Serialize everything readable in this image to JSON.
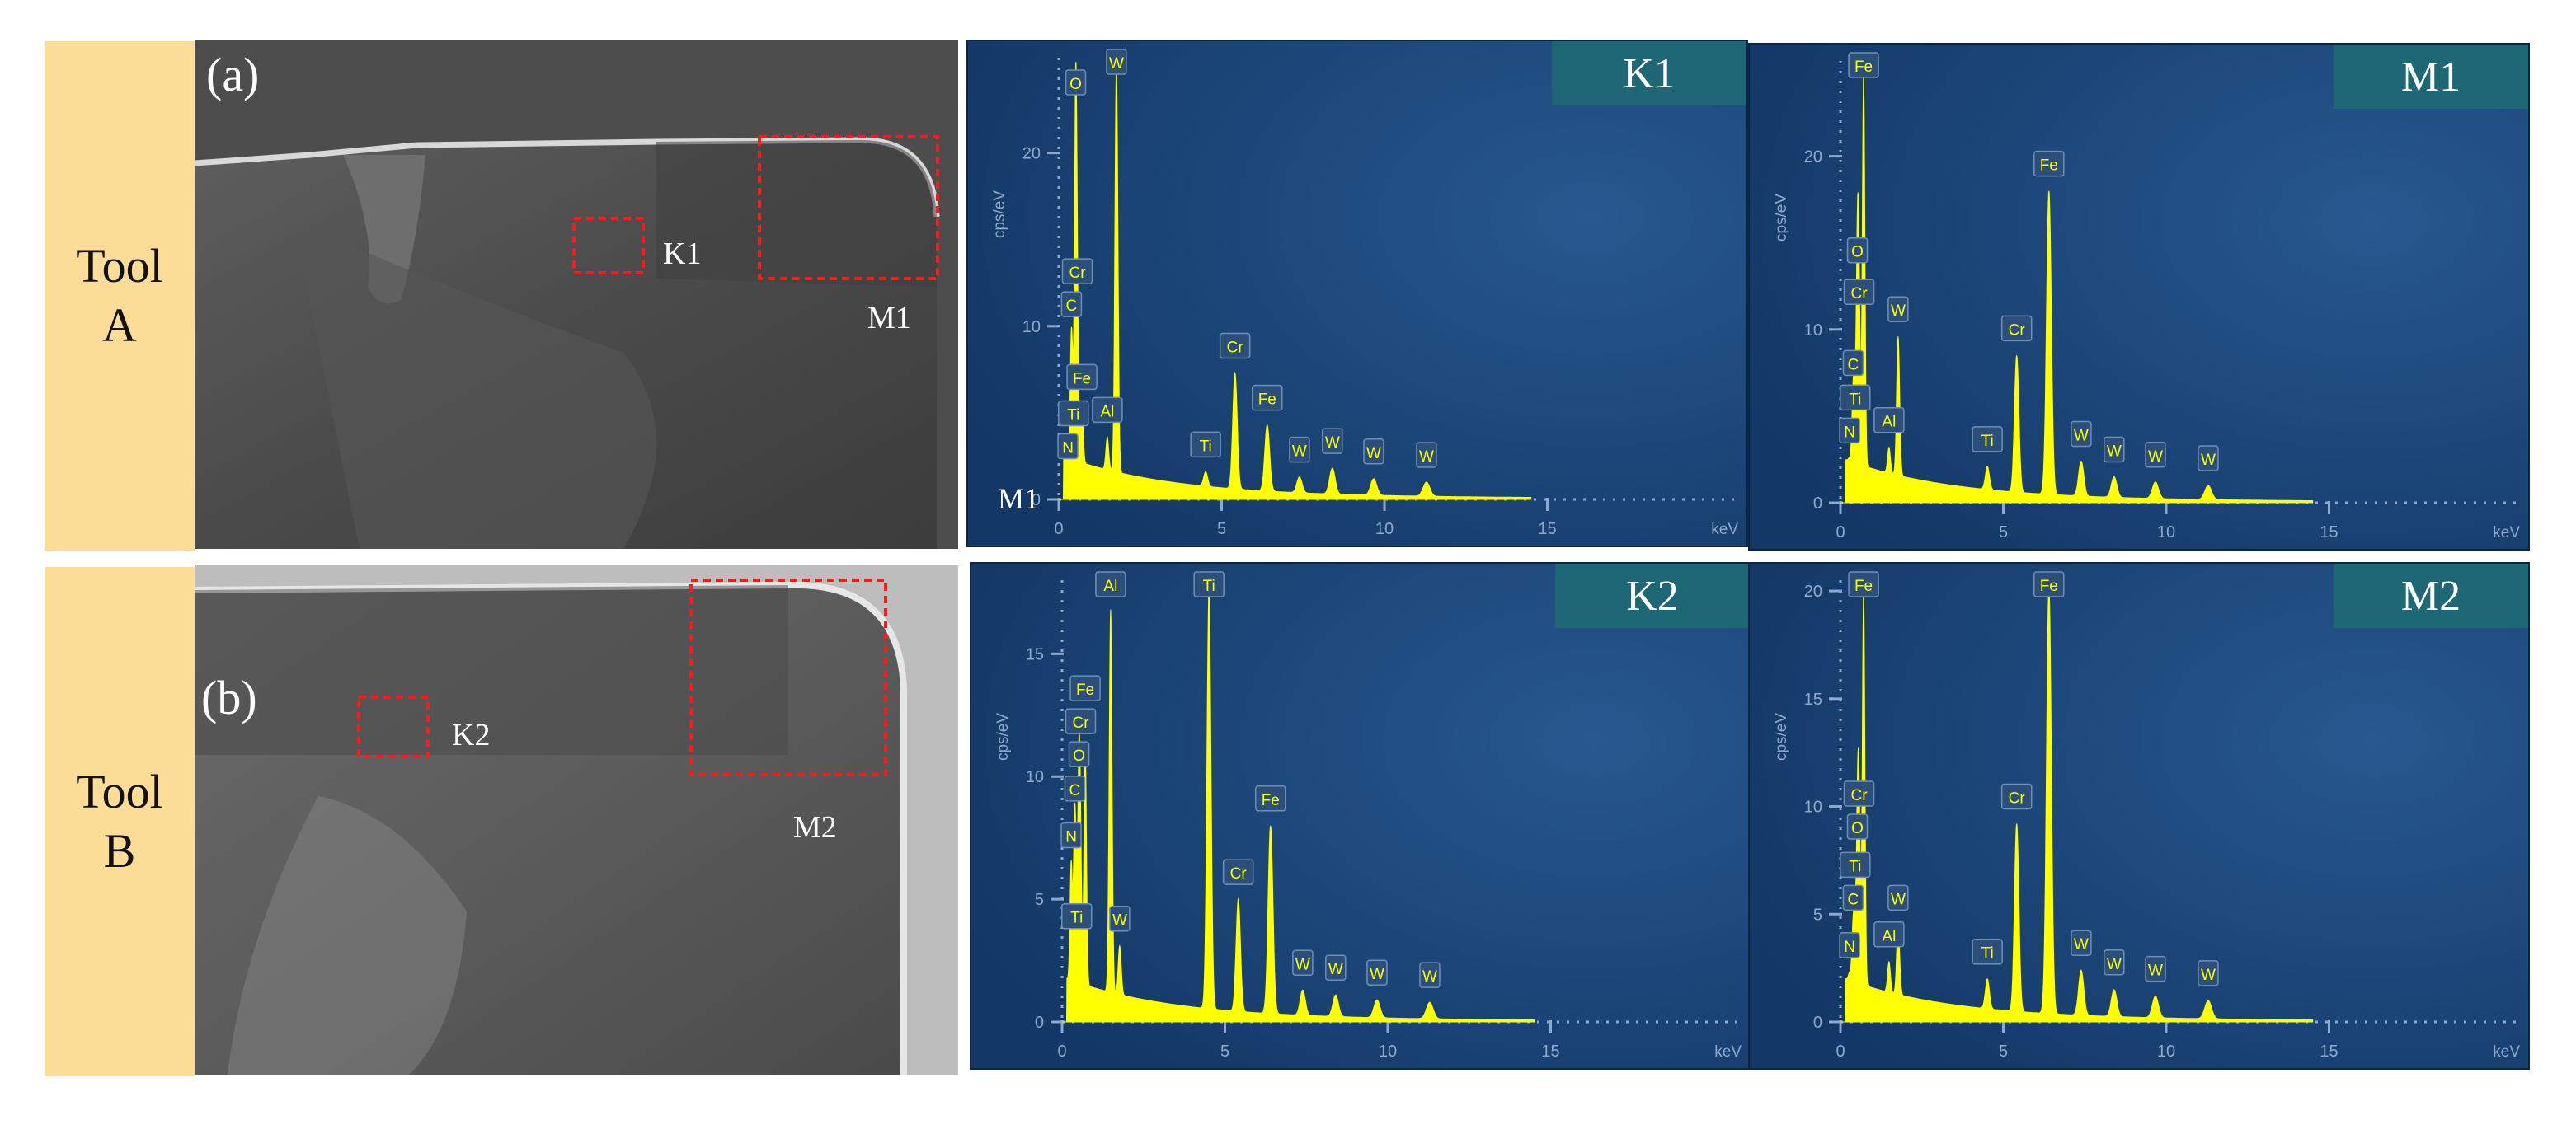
{
  "tools": [
    {
      "line1": "Tool",
      "line2": "A",
      "panel_letter": "(a)",
      "region_small": "K1",
      "region_large": "M1"
    },
    {
      "line1": "Tool",
      "line2": "B",
      "panel_letter": "(b)",
      "region_small": "K2",
      "region_large": "M2"
    }
  ],
  "overlay_text": "M1",
  "colors": {
    "tool_label_bg": "#fbdd97",
    "spectrum_bg": "#163d6e",
    "badge_bg": "#1e6875",
    "peak": "#ffff00",
    "box": "#ff1a1a"
  },
  "chart_data": [
    {
      "type": "area",
      "title": "K1",
      "ylabel": "cps/eV",
      "xlabel": "keV",
      "xlim": [
        0,
        20
      ],
      "ylim": [
        0,
        25.5
      ],
      "yticks": [
        0,
        10,
        20
      ],
      "xticks": [
        0,
        5,
        10,
        15
      ],
      "peaks": [
        {
          "x": 0.28,
          "y": 1.5,
          "label": "N"
        },
        {
          "x": 0.39,
          "y": 9.7,
          "label": "C"
        },
        {
          "x": 0.45,
          "y": 3.0,
          "label": "Ti"
        },
        {
          "x": 0.52,
          "y": 22.5,
          "label": "O"
        },
        {
          "x": 0.57,
          "y": 8.0,
          "label": "Cr"
        },
        {
          "x": 0.71,
          "y": 5.5,
          "label": "Fe"
        },
        {
          "x": 1.49,
          "y": 3.6,
          "label": "Al"
        },
        {
          "x": 1.77,
          "y": 25.2,
          "label": "W"
        },
        {
          "x": 4.51,
          "y": 1.6,
          "label": "Ti"
        },
        {
          "x": 5.41,
          "y": 7.3,
          "label": "Cr"
        },
        {
          "x": 6.4,
          "y": 4.3,
          "label": "Fe"
        },
        {
          "x": 7.39,
          "y": 1.3,
          "label": "W"
        },
        {
          "x": 8.4,
          "y": 1.8,
          "label": "W"
        },
        {
          "x": 9.67,
          "y": 1.2,
          "label": "W"
        },
        {
          "x": 11.29,
          "y": 1.0,
          "label": "W"
        }
      ]
    },
    {
      "type": "area",
      "title": "M1",
      "ylabel": "cps/eV",
      "xlabel": "keV",
      "xlim": [
        0,
        20
      ],
      "ylim": [
        0,
        25.5
      ],
      "yticks": [
        0,
        10,
        20
      ],
      "xticks": [
        0,
        5,
        10,
        15
      ],
      "peaks": [
        {
          "x": 0.28,
          "y": 2.6,
          "label": "N"
        },
        {
          "x": 0.39,
          "y": 6.5,
          "label": "C"
        },
        {
          "x": 0.45,
          "y": 4.5,
          "label": "Ti"
        },
        {
          "x": 0.52,
          "y": 13.0,
          "label": "O"
        },
        {
          "x": 0.57,
          "y": 10.6,
          "label": "Cr"
        },
        {
          "x": 0.71,
          "y": 25.0,
          "label": "Fe"
        },
        {
          "x": 1.49,
          "y": 3.2,
          "label": "Al"
        },
        {
          "x": 1.77,
          "y": 9.6,
          "label": "W"
        },
        {
          "x": 4.51,
          "y": 2.1,
          "label": "Ti"
        },
        {
          "x": 5.41,
          "y": 8.5,
          "label": "Cr"
        },
        {
          "x": 6.4,
          "y": 18.0,
          "label": "Fe"
        },
        {
          "x": 7.39,
          "y": 2.4,
          "label": "W"
        },
        {
          "x": 8.4,
          "y": 1.5,
          "label": "W"
        },
        {
          "x": 9.67,
          "y": 1.2,
          "label": "W"
        },
        {
          "x": 11.29,
          "y": 1.0,
          "label": "W"
        }
      ]
    },
    {
      "type": "area",
      "title": "K2",
      "ylabel": "cps/eV",
      "xlabel": "keV",
      "xlim": [
        0,
        20
      ],
      "ylim": [
        0,
        18
      ],
      "yticks": [
        0,
        5,
        10,
        15
      ],
      "xticks": [
        0,
        5,
        10,
        15
      ],
      "peaks": [
        {
          "x": 0.28,
          "y": 6.5,
          "label": "N"
        },
        {
          "x": 0.39,
          "y": 8.4,
          "label": "C"
        },
        {
          "x": 0.45,
          "y": 3.2,
          "label": "Ti"
        },
        {
          "x": 0.52,
          "y": 9.8,
          "label": "O"
        },
        {
          "x": 0.57,
          "y": 5.3,
          "label": "Cr"
        },
        {
          "x": 0.71,
          "y": 11.3,
          "label": "Fe"
        },
        {
          "x": 1.49,
          "y": 16.8,
          "label": "Al"
        },
        {
          "x": 1.77,
          "y": 3.1,
          "label": "W"
        },
        {
          "x": 4.51,
          "y": 17.6,
          "label": "Ti"
        },
        {
          "x": 5.41,
          "y": 5.0,
          "label": "Cr"
        },
        {
          "x": 6.4,
          "y": 8.0,
          "label": "Fe"
        },
        {
          "x": 7.39,
          "y": 1.3,
          "label": "W"
        },
        {
          "x": 8.4,
          "y": 1.1,
          "label": "W"
        },
        {
          "x": 9.67,
          "y": 0.9,
          "label": "W"
        },
        {
          "x": 11.29,
          "y": 0.8,
          "label": "W"
        }
      ]
    },
    {
      "type": "area",
      "title": "M2",
      "ylabel": "cps/eV",
      "xlabel": "keV",
      "xlim": [
        0,
        20
      ],
      "ylim": [
        0,
        20.5
      ],
      "yticks": [
        0,
        5,
        10,
        15,
        20
      ],
      "xticks": [
        0,
        5,
        10,
        15
      ],
      "peaks": [
        {
          "x": 0.28,
          "y": 2.3,
          "label": "N"
        },
        {
          "x": 0.39,
          "y": 4.5,
          "label": "C"
        },
        {
          "x": 0.45,
          "y": 3.5,
          "label": "Ti"
        },
        {
          "x": 0.52,
          "y": 7.8,
          "label": "O"
        },
        {
          "x": 0.57,
          "y": 9.2,
          "label": "Cr"
        },
        {
          "x": 0.71,
          "y": 20.2,
          "label": "Fe"
        },
        {
          "x": 1.49,
          "y": 2.8,
          "label": "Al"
        },
        {
          "x": 1.77,
          "y": 4.5,
          "label": "W"
        },
        {
          "x": 4.51,
          "y": 2.0,
          "label": "Ti"
        },
        {
          "x": 5.41,
          "y": 9.2,
          "label": "Cr"
        },
        {
          "x": 6.4,
          "y": 20.2,
          "label": "Fe"
        },
        {
          "x": 7.39,
          "y": 2.4,
          "label": "W"
        },
        {
          "x": 8.4,
          "y": 1.5,
          "label": "W"
        },
        {
          "x": 9.67,
          "y": 1.2,
          "label": "W"
        },
        {
          "x": 11.29,
          "y": 1.0,
          "label": "W"
        }
      ]
    }
  ]
}
